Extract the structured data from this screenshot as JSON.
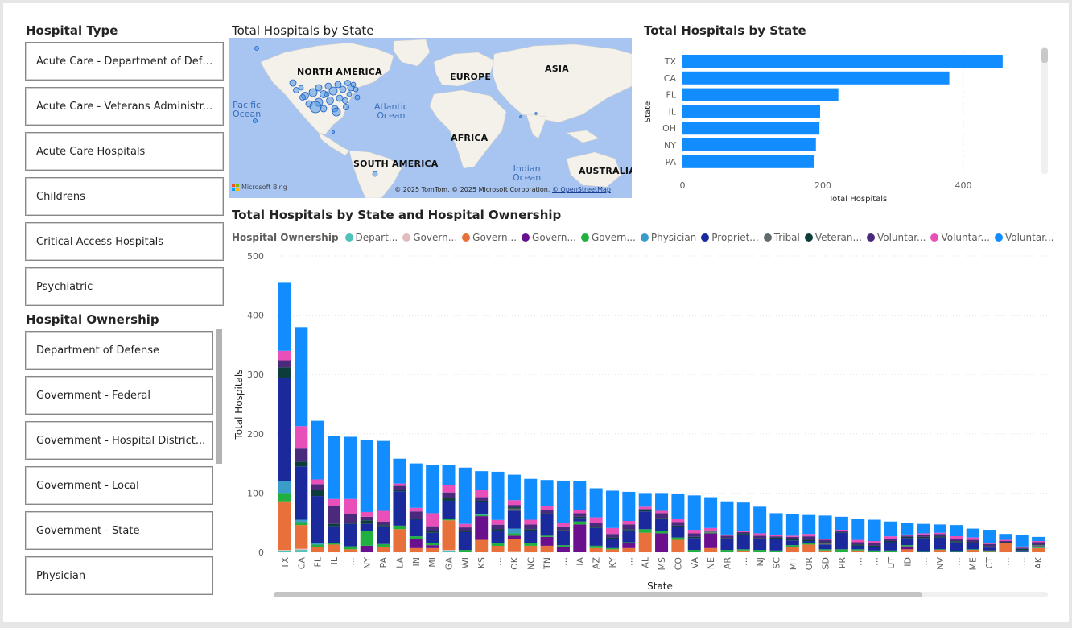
{
  "hospital_type": {
    "title": "Hospital Type",
    "items": [
      "Acute Care - Department of Defe...",
      "Acute Care - Veterans Administr...",
      "Acute Care Hospitals",
      "Childrens",
      "Critical Access Hospitals",
      "Psychiatric"
    ]
  },
  "hospital_ownership": {
    "title": "Hospital Ownership",
    "items": [
      "Department of Defense",
      "Government - Federal",
      "Government - Hospital District...",
      "Government - Local",
      "Government - State",
      "Physician"
    ]
  },
  "map_visual": {
    "title": "Total Hospitals by State",
    "labels": {
      "na": "NORTH AMERICA",
      "eu": "EUROPE",
      "asia": "ASIA",
      "af": "AFRICA",
      "sa": "SOUTH AMERICA",
      "au": "AUSTRALIA",
      "pacific": "Pacific\nOcean",
      "atlantic": "Atlantic\nOcean",
      "indian": "Indian\nOcean"
    },
    "brand": "Microsoft Bing",
    "attribution_text": "© 2025 TomTom, © 2025 Microsoft Corporation, ",
    "attribution_link": "© OpenStreetMap"
  },
  "bar_visual": {
    "title": "Total Hospitals by State",
    "ylabel": "State",
    "xlabel": "Total Hospitals",
    "ticks": [
      "0",
      "200",
      "400"
    ]
  },
  "stack_visual": {
    "title": "Total Hospitals by State and Hospital Ownership",
    "legend_title": "Hospital Ownership",
    "legend": [
      {
        "label": "Depart...",
        "color": "#4fc3b9"
      },
      {
        "label": "Govern...",
        "color": "#e0bcbc"
      },
      {
        "label": "Govern...",
        "color": "#e8703a"
      },
      {
        "label": "Govern...",
        "color": "#6a0f8e"
      },
      {
        "label": "Govern...",
        "color": "#20b040"
      },
      {
        "label": "Physician",
        "color": "#3a9cc8"
      },
      {
        "label": "Propriet...",
        "color": "#1a2a9c"
      },
      {
        "label": "Tribal",
        "color": "#5f6b6d"
      },
      {
        "label": "Veteran...",
        "color": "#0d3d3a"
      },
      {
        "label": "Voluntar...",
        "color": "#4b2a7e"
      },
      {
        "label": "Voluntar...",
        "color": "#e84fb8"
      },
      {
        "label": "Voluntar...",
        "color": "#118dff"
      }
    ]
  },
  "chart_data": [
    {
      "type": "bar",
      "orientation": "horizontal",
      "title": "Total Hospitals by State",
      "xlabel": "Total Hospitals",
      "ylabel": "State",
      "categories": [
        "TX",
        "CA",
        "FL",
        "IL",
        "OH",
        "NY",
        "PA"
      ],
      "values": [
        456,
        380,
        222,
        196,
        195,
        190,
        188
      ],
      "xlim": [
        0,
        500
      ],
      "color": "#118dff"
    },
    {
      "type": "bar",
      "stacked": true,
      "title": "Total Hospitals by State and Hospital Ownership",
      "xlabel": "State",
      "ylabel": "Total Hospitals",
      "ylim": [
        0,
        500
      ],
      "yticks": [
        0,
        100,
        200,
        300,
        400,
        500
      ],
      "categories": [
        "TX",
        "CA",
        "FL",
        "IL",
        "…",
        "NY",
        "PA",
        "LA",
        "IN",
        "MI",
        "GA",
        "WI",
        "KS",
        "…",
        "OK",
        "NC",
        "TN",
        "…",
        "IA",
        "AZ",
        "KY",
        "…",
        "AL",
        "MS",
        "CO",
        "VA",
        "NE",
        "AR",
        "…",
        "NJ",
        "SC",
        "MT",
        "OR",
        "SD",
        "PR",
        "…",
        "…",
        "UT",
        "ID",
        "…",
        "NV",
        "…",
        "ME",
        "CT",
        "…",
        "…",
        "AK"
      ],
      "totals": [
        456,
        380,
        222,
        196,
        195,
        190,
        188,
        158,
        150,
        148,
        147,
        143,
        137,
        136,
        131,
        124,
        122,
        121,
        120,
        108,
        104,
        102,
        100,
        100,
        98,
        96,
        93,
        86,
        84,
        77,
        66,
        64,
        63,
        62,
        60,
        57,
        55,
        52,
        49,
        48,
        47,
        46,
        40,
        38,
        31,
        29,
        26
      ],
      "series": [
        {
          "name": "Depart...",
          "color": "#4fc3b9",
          "values": [
            3,
            4,
            0,
            0,
            0,
            0,
            0,
            0,
            0,
            0,
            3,
            0,
            0,
            0,
            0,
            0,
            0,
            0,
            0,
            0,
            0,
            0,
            0,
            0,
            0,
            0,
            0,
            0,
            0,
            0,
            0,
            0,
            0,
            0,
            0,
            0,
            0,
            0,
            0,
            0,
            0,
            0,
            0,
            0,
            0,
            0,
            0
          ]
        },
        {
          "name": "Govern...",
          "color": "#e0bcbc",
          "values": [
            1,
            2,
            1,
            1,
            1,
            1,
            1,
            1,
            1,
            1,
            1,
            1,
            1,
            1,
            2,
            1,
            1,
            1,
            1,
            1,
            1,
            1,
            1,
            0,
            1,
            1,
            1,
            1,
            1,
            1,
            1,
            1,
            1,
            1,
            1,
            1,
            1,
            1,
            1,
            1,
            1,
            1,
            1,
            1,
            1,
            1,
            1
          ]
        },
        {
          "name": "Govern...",
          "color": "#e8703a",
          "values": [
            82,
            40,
            8,
            12,
            4,
            0,
            8,
            38,
            6,
            6,
            50,
            0,
            20,
            10,
            20,
            10,
            10,
            0,
            0,
            6,
            4,
            6,
            32,
            0,
            20,
            0,
            6,
            0,
            2,
            0,
            0,
            8,
            12,
            2,
            0,
            2,
            0,
            0,
            4,
            0,
            3,
            0,
            3,
            1,
            14,
            0,
            6
          ]
        },
        {
          "name": "Govern...",
          "color": "#6a0f8e",
          "values": [
            0,
            0,
            0,
            0,
            0,
            10,
            0,
            0,
            15,
            5,
            0,
            0,
            40,
            0,
            6,
            0,
            15,
            8,
            46,
            0,
            0,
            8,
            0,
            32,
            0,
            0,
            25,
            0,
            0,
            0,
            0,
            0,
            0,
            0,
            0,
            0,
            0,
            0,
            5,
            0,
            0,
            0,
            0,
            0,
            0,
            0,
            0
          ]
        },
        {
          "name": "Govern...",
          "color": "#20b040",
          "values": [
            14,
            5,
            4,
            3,
            5,
            25,
            5,
            6,
            5,
            3,
            3,
            3,
            2,
            4,
            4,
            5,
            2,
            3,
            5,
            4,
            2,
            2,
            6,
            4,
            4,
            3,
            1,
            3,
            2,
            3,
            2,
            3,
            2,
            2,
            4,
            2,
            2,
            2,
            2,
            1,
            1,
            1,
            1,
            1,
            1,
            1,
            1
          ]
        },
        {
          "name": "Physician",
          "color": "#3a9cc8",
          "values": [
            20,
            4,
            2,
            0,
            0,
            0,
            0,
            0,
            0,
            0,
            0,
            0,
            2,
            0,
            8,
            0,
            0,
            0,
            0,
            0,
            0,
            0,
            0,
            0,
            0,
            0,
            0,
            0,
            0,
            0,
            0,
            0,
            0,
            0,
            0,
            0,
            0,
            0,
            0,
            0,
            0,
            0,
            0,
            0,
            0,
            0,
            0
          ]
        },
        {
          "name": "Propriet...",
          "color": "#1a2a9c",
          "values": [
            174,
            90,
            80,
            28,
            38,
            12,
            30,
            58,
            28,
            18,
            30,
            30,
            20,
            22,
            30,
            20,
            36,
            24,
            6,
            30,
            16,
            20,
            30,
            20,
            18,
            20,
            0,
            18,
            25,
            18,
            20,
            8,
            4,
            8,
            28,
            6,
            6,
            14,
            12,
            22,
            20,
            14,
            10,
            5,
            0,
            2,
            2
          ]
        },
        {
          "name": "Tribal",
          "color": "#5f6b6d",
          "values": [
            0,
            0,
            0,
            0,
            0,
            0,
            0,
            0,
            0,
            0,
            0,
            0,
            0,
            0,
            4,
            0,
            0,
            0,
            0,
            0,
            0,
            0,
            0,
            0,
            0,
            0,
            2,
            0,
            0,
            0,
            0,
            0,
            0,
            2,
            0,
            0,
            0,
            0,
            0,
            0,
            0,
            0,
            0,
            0,
            0,
            0,
            2
          ]
        },
        {
          "name": "Veteran...",
          "color": "#0d3d3a",
          "values": [
            18,
            8,
            10,
            4,
            2,
            6,
            2,
            3,
            2,
            3,
            4,
            2,
            2,
            2,
            2,
            3,
            2,
            2,
            2,
            2,
            2,
            2,
            2,
            2,
            2,
            2,
            0,
            2,
            2,
            2,
            2,
            2,
            2,
            2,
            1,
            2,
            2,
            2,
            2,
            2,
            2,
            2,
            2,
            2,
            1,
            2,
            1
          ]
        },
        {
          "name": "Voluntar...",
          "color": "#4b2a7e",
          "values": [
            12,
            22,
            10,
            30,
            15,
            6,
            6,
            6,
            12,
            8,
            10,
            6,
            6,
            8,
            4,
            8,
            6,
            6,
            6,
            6,
            6,
            8,
            2,
            8,
            6,
            6,
            2,
            4,
            2,
            4,
            2,
            4,
            6,
            4,
            2,
            4,
            4,
            4,
            2,
            4,
            4,
            4,
            4,
            4,
            2,
            2,
            4
          ]
        },
        {
          "name": "Voluntar...",
          "color": "#e84fb8",
          "values": [
            16,
            38,
            8,
            12,
            25,
            8,
            18,
            4,
            6,
            22,
            12,
            6,
            12,
            8,
            8,
            8,
            6,
            6,
            6,
            10,
            10,
            6,
            4,
            4,
            6,
            6,
            4,
            2,
            2,
            4,
            2,
            2,
            4,
            2,
            2,
            4,
            4,
            4,
            2,
            2,
            2,
            4,
            4,
            2,
            2,
            2,
            2
          ]
        },
        {
          "name": "Voluntar...",
          "color": "#118dff",
          "values": [
            116,
            167,
            99,
            106,
            105,
            122,
            118,
            42,
            75,
            82,
            34,
            95,
            32,
            82,
            43,
            69,
            44,
            72,
            48,
            49,
            63,
            49,
            23,
            30,
            41,
            58,
            52,
            56,
            48,
            45,
            37,
            36,
            32,
            39,
            22,
            36,
            36,
            25,
            19,
            16,
            14,
            18,
            15,
            22,
            10,
            20,
            7
          ]
        }
      ]
    }
  ]
}
